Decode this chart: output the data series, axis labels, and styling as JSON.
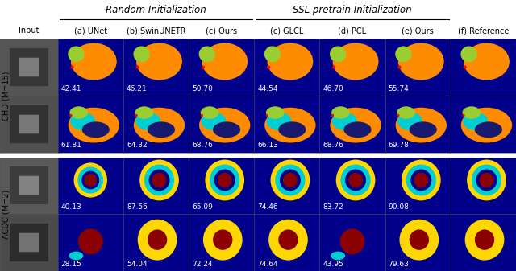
{
  "title_left": "Random Initialization",
  "title_right": "SSL pretrain Initialization",
  "col_labels": [
    "Input",
    "(a) UNet",
    "(b) SwinUNETR",
    "(c) Ours",
    "(c) GLCL",
    "(d) PCL",
    "(e) Ours",
    "(f) Reference"
  ],
  "row_labels_top": "ACDC (M=2)",
  "row_labels_bot": "CHD (M=15)",
  "scores_acdc_top": [
    "40.13",
    "87.56",
    "65.09",
    "74.46",
    "83.72",
    "90.08"
  ],
  "scores_acdc_bot": [
    "28.15",
    "54.04",
    "72.24",
    "74.64",
    "43.95",
    "79.63"
  ],
  "scores_chd_top": [
    "42.41",
    "46.21",
    "50.70",
    "44.54",
    "46.70",
    "55.74"
  ],
  "scores_chd_bot": [
    "61.81",
    "64.32",
    "68.76",
    "66.13",
    "68.76",
    "69.78"
  ],
  "dark_blue": "#00008B",
  "score_text_color": "white",
  "score_fontsize": 6.5,
  "header_fontsize": 8.5,
  "label_fontsize": 7,
  "row_label_fontsize": 7,
  "fig_bg": "white",
  "acdc_colors": {
    "bg": "#00008B",
    "outer_ring": "#FFD700",
    "mid_ring": "#00CED1",
    "inner": "#8B0000"
  },
  "chd_colors": {
    "bg": "#00008B",
    "orange": "#FF8C00",
    "yellow_green": "#9ACD32",
    "blue": "#00008B",
    "cyan": "#00CED1",
    "red": "#FF0000",
    "green": "#228B22"
  }
}
